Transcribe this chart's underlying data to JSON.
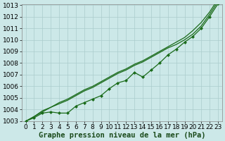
{
  "xlabel": "Graphe pression niveau de la mer (hPa)",
  "x": [
    0,
    1,
    2,
    3,
    4,
    5,
    6,
    7,
    8,
    9,
    10,
    11,
    12,
    13,
    14,
    15,
    16,
    17,
    18,
    19,
    20,
    21,
    22,
    23
  ],
  "line_smooth": [
    1003.0,
    1003.4,
    1003.8,
    1004.2,
    1004.5,
    1004.8,
    1005.2,
    1005.6,
    1005.9,
    1006.3,
    1006.7,
    1007.1,
    1007.4,
    1007.8,
    1008.1,
    1008.5,
    1008.9,
    1009.3,
    1009.6,
    1010.0,
    1010.5,
    1011.2,
    1012.2,
    1013.3
  ],
  "line_upper": [
    1003.0,
    1003.4,
    1003.9,
    1004.2,
    1004.6,
    1004.9,
    1005.3,
    1005.7,
    1006.0,
    1006.4,
    1006.8,
    1007.2,
    1007.5,
    1007.9,
    1008.2,
    1008.6,
    1009.0,
    1009.4,
    1009.8,
    1010.2,
    1010.8,
    1011.5,
    1012.4,
    1013.5
  ],
  "line_markers": [
    1003.0,
    1003.3,
    1003.7,
    1003.8,
    1003.7,
    1003.7,
    1004.3,
    1004.6,
    1004.9,
    1005.2,
    1005.8,
    1006.3,
    1006.5,
    1007.2,
    1006.8,
    1007.4,
    1008.0,
    1008.7,
    1009.2,
    1009.8,
    1010.3,
    1011.0,
    1012.0,
    1013.1
  ],
  "ylim": [
    1003,
    1013
  ],
  "xlim": [
    -0.5,
    23.5
  ],
  "yticks": [
    1003,
    1004,
    1005,
    1006,
    1007,
    1008,
    1009,
    1010,
    1011,
    1012,
    1013
  ],
  "xticks": [
    0,
    1,
    2,
    3,
    4,
    5,
    6,
    7,
    8,
    9,
    10,
    11,
    12,
    13,
    14,
    15,
    16,
    17,
    18,
    19,
    20,
    21,
    22,
    23
  ],
  "line_color": "#1a6b1a",
  "bg_color": "#cce8e8",
  "grid_color": "#aacccc",
  "xlabel_fontsize": 7.5,
  "tick_fontsize": 6.5
}
